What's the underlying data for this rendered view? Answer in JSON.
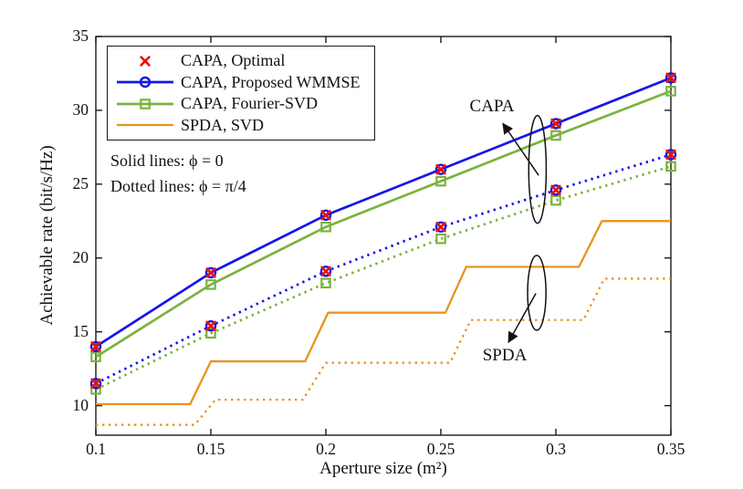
{
  "chart_data": {
    "type": "line",
    "title": "",
    "xlabel": "Aperture size (m²)",
    "ylabel": "Achievable rate (bit/s/Hz)",
    "xlim": [
      0.1,
      0.35
    ],
    "ylim": [
      8,
      35
    ],
    "x_ticks": [
      0.1,
      0.15,
      0.2,
      0.25,
      0.3,
      0.35
    ],
    "x_tick_labels": [
      "0.1",
      "0.15",
      "0.2",
      "0.25",
      "0.3",
      "0.35"
    ],
    "y_ticks": [
      10,
      15,
      20,
      25,
      30,
      35
    ],
    "y_tick_labels": [
      "10",
      "15",
      "20",
      "25",
      "30",
      "35"
    ],
    "grid": false,
    "legend_position": "top-left",
    "line_style_note_solid": "Solid lines: ϕ = 0",
    "line_style_note_dotted": "Dotted lines: ϕ = π/4",
    "x": [
      0.1,
      0.15,
      0.2,
      0.25,
      0.3,
      0.35
    ],
    "series": [
      {
        "name": "CAPA, Optimal",
        "color": "#ee1100",
        "marker": "x",
        "has_line": false,
        "solid_values": [
          14.0,
          19.0,
          22.9,
          26.0,
          29.1,
          32.2
        ],
        "dotted_values": [
          11.5,
          15.4,
          19.1,
          22.1,
          24.6,
          27.0
        ]
      },
      {
        "name": "CAPA, Proposed WMMSE",
        "color": "#1616e8",
        "marker": "circle",
        "has_line": true,
        "solid_values": [
          14.0,
          19.0,
          22.9,
          26.0,
          29.1,
          32.2
        ],
        "dotted_values": [
          11.5,
          15.4,
          19.1,
          22.1,
          24.6,
          27.0
        ]
      },
      {
        "name": "CAPA, Fourier-SVD",
        "color": "#7ab33e",
        "marker": "square",
        "has_line": true,
        "solid_values": [
          13.3,
          18.2,
          22.1,
          25.2,
          28.3,
          31.3
        ],
        "dotted_values": [
          11.1,
          14.9,
          18.3,
          21.3,
          23.9,
          26.2
        ]
      },
      {
        "name": "SPDA, SVD",
        "color": "#e8941c",
        "marker": "none",
        "has_line": true,
        "solid_points": [
          [
            0.1,
            10.1
          ],
          [
            0.141,
            10.1
          ],
          [
            0.15,
            13.0
          ],
          [
            0.191,
            13.0
          ],
          [
            0.201,
            16.3
          ],
          [
            0.252,
            16.3
          ],
          [
            0.261,
            19.4
          ],
          [
            0.31,
            19.4
          ],
          [
            0.32,
            22.5
          ],
          [
            0.35,
            22.5
          ]
        ],
        "dotted_points": [
          [
            0.1,
            8.7
          ],
          [
            0.143,
            8.7
          ],
          [
            0.152,
            10.4
          ],
          [
            0.19,
            10.4
          ],
          [
            0.2,
            12.9
          ],
          [
            0.254,
            12.9
          ],
          [
            0.263,
            15.8
          ],
          [
            0.312,
            15.8
          ],
          [
            0.321,
            18.6
          ],
          [
            0.35,
            18.6
          ]
        ]
      }
    ],
    "annotations": [
      {
        "label": "CAPA",
        "label_pos": [
          0.272,
          30.2
        ],
        "ellipse": {
          "cx": 0.292,
          "cy": 26.0,
          "rx": 0.0038,
          "ry": 3.65
        },
        "arrow": {
          "from": [
            0.2925,
            25.6
          ],
          "to": [
            0.277,
            29.1
          ]
        }
      },
      {
        "label": "SPDA",
        "label_pos": [
          0.278,
          13.4
        ],
        "ellipse": {
          "cx": 0.2917,
          "cy": 17.64,
          "rx": 0.004,
          "ry": 2.53
        },
        "arrow": {
          "from": [
            0.2913,
            17.6
          ],
          "to": [
            0.2794,
            14.3
          ]
        }
      }
    ]
  },
  "legend": {
    "items": [
      {
        "label": "CAPA, Optimal"
      },
      {
        "label": "CAPA, Proposed WMMSE"
      },
      {
        "label": "CAPA, Fourier-SVD"
      },
      {
        "label": "SPDA, SVD"
      }
    ]
  }
}
